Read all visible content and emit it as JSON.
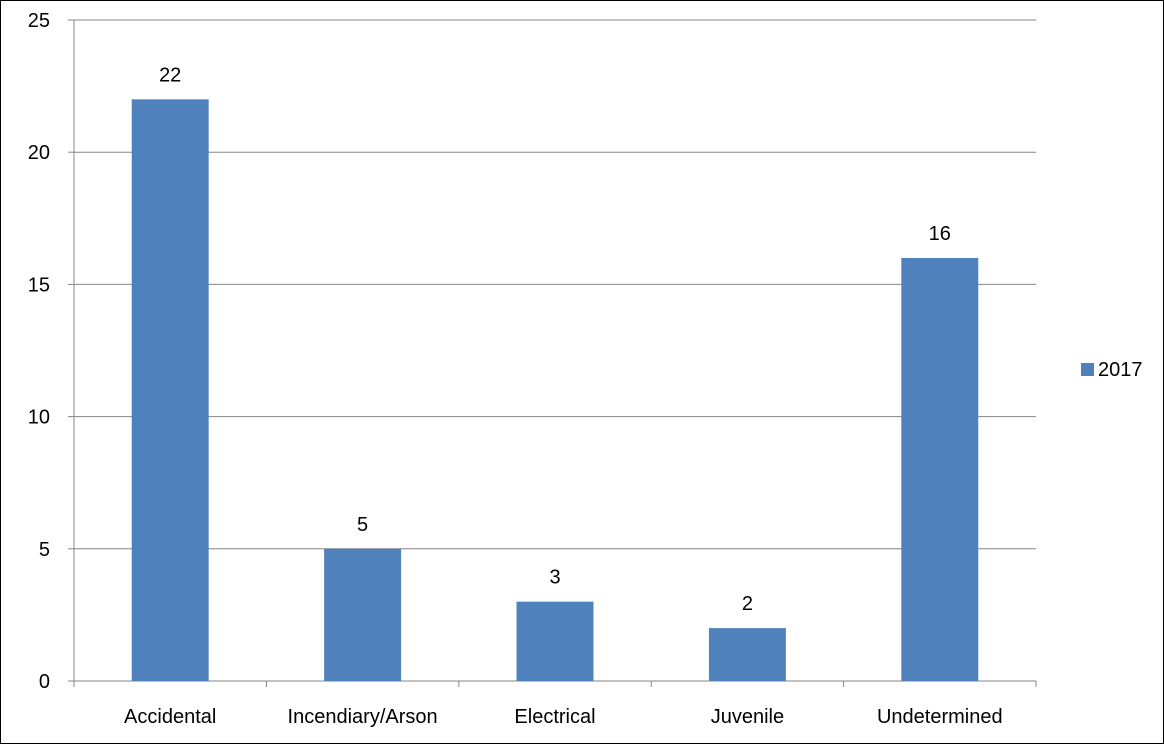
{
  "chart_data": {
    "type": "bar",
    "categories": [
      "Accidental",
      "Incendiary/Arson",
      "Electrical",
      "Juvenile",
      "Undetermined"
    ],
    "series": [
      {
        "name": "2017",
        "values": [
          22,
          5,
          3,
          2,
          16
        ],
        "color": "#4f81bd"
      }
    ],
    "ylim": [
      0,
      25
    ],
    "yticks": [
      0,
      5,
      10,
      15,
      20,
      25
    ],
    "grid": true,
    "data_labels": true,
    "legend": "right",
    "title": "",
    "xlabel": "",
    "ylabel": ""
  }
}
